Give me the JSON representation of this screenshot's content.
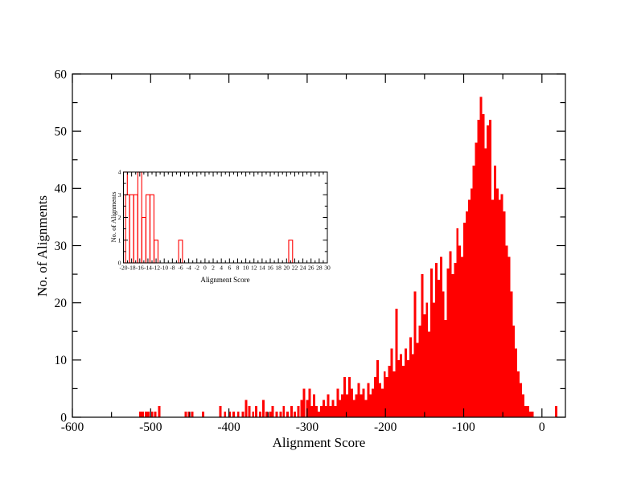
{
  "colors": {
    "bar": "#ff0000",
    "axis": "#000000",
    "background": "#ffffff"
  },
  "chart_data": [
    {
      "name": "main-histogram",
      "type": "bar",
      "style": "filled",
      "title": "",
      "xlabel": "Alignment Score",
      "ylabel": "No. of Alignments",
      "xlim": [
        -600,
        30
      ],
      "ylim": [
        0,
        60
      ],
      "x_ticks": [
        -600,
        -500,
        -400,
        -300,
        -200,
        -100,
        0
      ],
      "x_tick_labels": [
        "-600",
        "-500",
        "-400",
        "-300",
        "-200",
        "-100",
        "0"
      ],
      "x_minor_step": 50,
      "y_ticks": [
        0,
        10,
        20,
        30,
        40,
        50,
        60
      ],
      "y_tick_labels": [
        "0",
        "10",
        "20",
        "30",
        "40",
        "50",
        "60"
      ],
      "y_minor_step": 5,
      "bin_width": 3,
      "legend": "none",
      "grid": "off",
      "bins": [
        [
          -513,
          1
        ],
        [
          -510,
          1
        ],
        [
          -506,
          1
        ],
        [
          -503,
          1
        ],
        [
          -498,
          1
        ],
        [
          -494,
          1
        ],
        [
          -489,
          2
        ],
        [
          -455,
          1
        ],
        [
          -451,
          1
        ],
        [
          -447,
          1
        ],
        [
          -433,
          1
        ],
        [
          -411,
          2
        ],
        [
          -405,
          1
        ],
        [
          -399,
          1
        ],
        [
          -394,
          1
        ],
        [
          -388,
          1
        ],
        [
          -382,
          1
        ],
        [
          -378,
          3
        ],
        [
          -374,
          2
        ],
        [
          -369,
          1
        ],
        [
          -365,
          2
        ],
        [
          -360,
          1
        ],
        [
          -356,
          3
        ],
        [
          -352,
          1
        ],
        [
          -347,
          1
        ],
        [
          -344,
          2
        ],
        [
          -339,
          1
        ],
        [
          -334,
          1
        ],
        [
          -330,
          2
        ],
        [
          -325,
          1
        ],
        [
          -320,
          2
        ],
        [
          -316,
          1
        ],
        [
          -311,
          2
        ],
        [
          -307,
          3
        ],
        [
          -304,
          5
        ],
        [
          -300,
          3
        ],
        [
          -297,
          5
        ],
        [
          -294,
          2
        ],
        [
          -291,
          4
        ],
        [
          -288,
          2
        ],
        [
          -285,
          1
        ],
        [
          -282,
          2
        ],
        [
          -279,
          3
        ],
        [
          -276,
          2
        ],
        [
          -273,
          4
        ],
        [
          -270,
          2
        ],
        [
          -267,
          3
        ],
        [
          -264,
          2
        ],
        [
          -261,
          5
        ],
        [
          -258,
          3
        ],
        [
          -255,
          4
        ],
        [
          -252,
          7
        ],
        [
          -249,
          4
        ],
        [
          -246,
          7
        ],
        [
          -243,
          5
        ],
        [
          -240,
          3
        ],
        [
          -237,
          4
        ],
        [
          -234,
          6
        ],
        [
          -231,
          4
        ],
        [
          -228,
          5
        ],
        [
          -225,
          3
        ],
        [
          -222,
          6
        ],
        [
          -219,
          4
        ],
        [
          -216,
          5
        ],
        [
          -213,
          7
        ],
        [
          -210,
          10
        ],
        [
          -207,
          6
        ],
        [
          -204,
          5
        ],
        [
          -201,
          8
        ],
        [
          -198,
          7
        ],
        [
          -195,
          9
        ],
        [
          -192,
          12
        ],
        [
          -189,
          8
        ],
        [
          -186,
          19
        ],
        [
          -183,
          10
        ],
        [
          -180,
          11
        ],
        [
          -177,
          9
        ],
        [
          -174,
          12
        ],
        [
          -171,
          10
        ],
        [
          -168,
          14
        ],
        [
          -165,
          11
        ],
        [
          -162,
          22
        ],
        [
          -159,
          13
        ],
        [
          -156,
          16
        ],
        [
          -153,
          25
        ],
        [
          -150,
          18
        ],
        [
          -147,
          20
        ],
        [
          -144,
          15
        ],
        [
          -141,
          26
        ],
        [
          -138,
          20
        ],
        [
          -135,
          27
        ],
        [
          -132,
          24
        ],
        [
          -129,
          28
        ],
        [
          -126,
          22
        ],
        [
          -123,
          17
        ],
        [
          -120,
          26
        ],
        [
          -117,
          29
        ],
        [
          -114,
          25
        ],
        [
          -111,
          27
        ],
        [
          -108,
          33
        ],
        [
          -105,
          30
        ],
        [
          -102,
          28
        ],
        [
          -99,
          34
        ],
        [
          -96,
          36
        ],
        [
          -93,
          38
        ],
        [
          -90,
          40
        ],
        [
          -87,
          44
        ],
        [
          -84,
          48
        ],
        [
          -81,
          52
        ],
        [
          -78,
          56
        ],
        [
          -75,
          53
        ],
        [
          -72,
          47
        ],
        [
          -69,
          51
        ],
        [
          -66,
          52
        ],
        [
          -63,
          38
        ],
        [
          -60,
          44
        ],
        [
          -57,
          40
        ],
        [
          -54,
          38
        ],
        [
          -51,
          39
        ],
        [
          -48,
          36
        ],
        [
          -45,
          30
        ],
        [
          -42,
          28
        ],
        [
          -39,
          22
        ],
        [
          -36,
          16
        ],
        [
          -33,
          12
        ],
        [
          -30,
          8
        ],
        [
          -27,
          6
        ],
        [
          -24,
          4
        ],
        [
          -21,
          2
        ],
        [
          -18,
          2
        ],
        [
          -15,
          1
        ],
        [
          -12,
          1
        ],
        [
          18,
          2
        ]
      ]
    },
    {
      "name": "inset-histogram",
      "type": "bar",
      "style": "outline",
      "title": "",
      "xlabel": "Alignment Score",
      "ylabel": "No. of Alignments",
      "xlim": [
        -20,
        30
      ],
      "ylim": [
        0,
        4
      ],
      "x_ticks": [
        -20,
        -18,
        -16,
        -14,
        -12,
        -10,
        -8,
        -6,
        -4,
        -2,
        0,
        2,
        4,
        6,
        8,
        10,
        12,
        14,
        16,
        18,
        20,
        22,
        24,
        26,
        28,
        30
      ],
      "x_tick_labels": [
        "-20",
        "-18",
        "-16",
        "-14",
        "-12",
        "-10",
        "-8",
        "-6",
        "-4",
        "-2",
        "0",
        "2",
        "4",
        "6",
        "8",
        "10",
        "12",
        "14",
        "16",
        "18",
        "20",
        "22",
        "24",
        "26",
        "28",
        "30"
      ],
      "x_minor_step": 1,
      "y_ticks": [
        0,
        1,
        2,
        3,
        4
      ],
      "y_tick_labels": [
        "0",
        "1",
        "2",
        "3",
        "4"
      ],
      "y_minor_step": 0.5,
      "bin_width": 0.95,
      "legend": "none",
      "grid": "off",
      "bins": [
        [
          -20,
          4
        ],
        [
          -19,
          3
        ],
        [
          -18,
          3
        ],
        [
          -17,
          3
        ],
        [
          -16,
          4
        ],
        [
          -15,
          2
        ],
        [
          -14,
          3
        ],
        [
          -13,
          3
        ],
        [
          -12,
          1
        ],
        [
          -6,
          1
        ],
        [
          21,
          1
        ]
      ]
    }
  ]
}
